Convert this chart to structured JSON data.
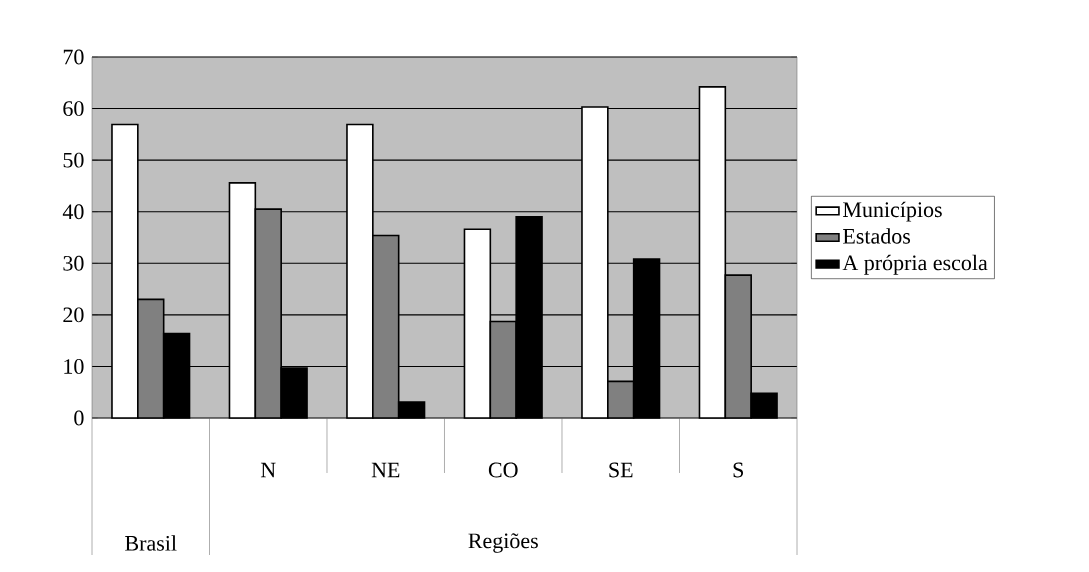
{
  "chart_data": {
    "type": "bar",
    "categories": [
      null,
      "N",
      "NE",
      "CO",
      "SE",
      "S"
    ],
    "series": [
      {
        "name": "Municípios",
        "color": "#ffffff",
        "values": [
          56.9,
          45.6,
          56.9,
          36.6,
          60.3,
          64.2
        ]
      },
      {
        "name": "Estados",
        "color": "#808080",
        "values": [
          23.0,
          40.5,
          35.4,
          18.7,
          7.1,
          27.7
        ]
      },
      {
        "name": "A própria escola",
        "color": "#000000",
        "values": [
          16.4,
          9.7,
          3.1,
          39.0,
          30.8,
          4.8
        ]
      }
    ],
    "annotations": [
      "Brasil",
      "Regiões"
    ],
    "ylim": [
      0,
      70
    ],
    "yticks": [
      0,
      10,
      20,
      30,
      40,
      50,
      60,
      70
    ],
    "grid": "y",
    "legend": "right"
  }
}
